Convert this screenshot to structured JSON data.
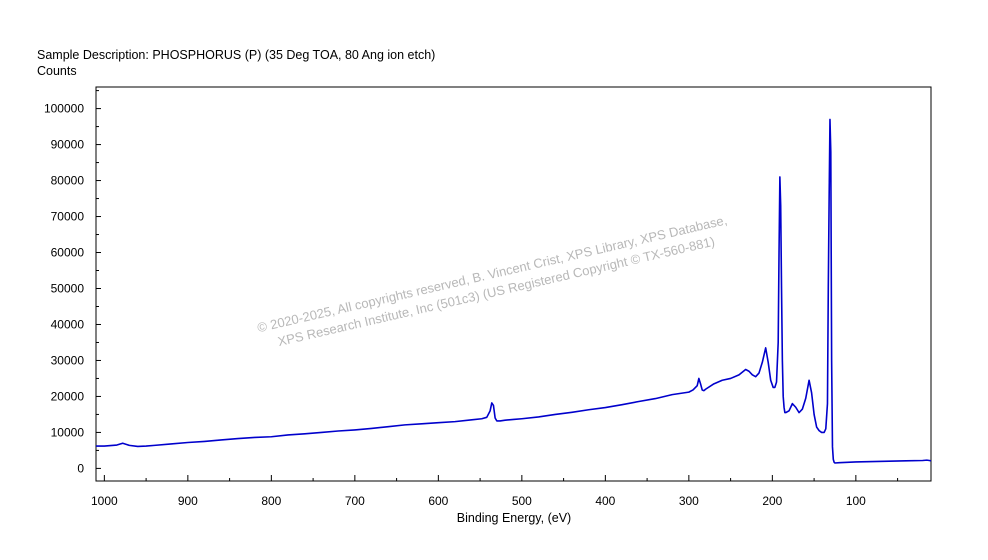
{
  "chart_data": {
    "type": "line",
    "title": "Sample Description:  PHOSPHORUS (P) (35 Deg TOA, 80 Ang ion etch)",
    "ylabel": "Counts",
    "xlabel": "Binding Energy, (eV)",
    "x_reversed": true,
    "xlim": [
      1010,
      10
    ],
    "ylim": [
      -3500,
      106000
    ],
    "x_ticks": [
      1000,
      900,
      800,
      700,
      600,
      500,
      400,
      300,
      200,
      100
    ],
    "y_ticks": [
      0,
      10000,
      20000,
      30000,
      40000,
      50000,
      60000,
      70000,
      80000,
      90000,
      100000
    ],
    "grid": false,
    "line_color": "#0000cc",
    "watermark": [
      "©  2020-2025,  All copyrights reserved,   B. Vincent Crist,  XPS Library, XPS Database,",
      "XPS Research Institute, Inc (501c3)   (US Registered Copyright © TX-560-881)"
    ],
    "series": [
      {
        "x": [
          1010,
          1000,
          985,
          978,
          970,
          960,
          950,
          940,
          920,
          900,
          880,
          860,
          840,
          820,
          800,
          780,
          760,
          740,
          720,
          700,
          680,
          660,
          640,
          620,
          600,
          580,
          560,
          548,
          542,
          538,
          536,
          534,
          532,
          530,
          526,
          520,
          510,
          500,
          480,
          460,
          440,
          420,
          400,
          380,
          360,
          340,
          320,
          300,
          295,
          290,
          288,
          286,
          284,
          282,
          280,
          270,
          260,
          250,
          240,
          232,
          228,
          224,
          220,
          216,
          212,
          208,
          205,
          202,
          199,
          197,
          195,
          193,
          192,
          191,
          190,
          189,
          188,
          187,
          186,
          185,
          184,
          180,
          176,
          172,
          168,
          164,
          160,
          156,
          153,
          150,
          147,
          144,
          141,
          138,
          136,
          134,
          133,
          132,
          131,
          130,
          129,
          128,
          127,
          126,
          125,
          120,
          110,
          100,
          80,
          60,
          40,
          20,
          15,
          12,
          10
        ],
        "y": [
          6200,
          6200,
          6500,
          7000,
          6400,
          6100,
          6200,
          6400,
          6800,
          7200,
          7500,
          7900,
          8300,
          8600,
          8800,
          9300,
          9600,
          10000,
          10400,
          10700,
          11100,
          11600,
          12100,
          12400,
          12700,
          13000,
          13500,
          13800,
          14200,
          16000,
          18200,
          17500,
          14000,
          13200,
          13200,
          13400,
          13600,
          13800,
          14300,
          15000,
          15600,
          16300,
          16900,
          17700,
          18600,
          19400,
          20500,
          21200,
          21800,
          23000,
          25000,
          23500,
          21800,
          21600,
          22000,
          23500,
          24500,
          25000,
          26000,
          27500,
          27000,
          26000,
          25500,
          26500,
          29500,
          33500,
          29500,
          24500,
          22500,
          22500,
          24000,
          35000,
          60000,
          81000,
          73000,
          50000,
          30000,
          20000,
          17000,
          15500,
          15500,
          16000,
          18000,
          17000,
          15500,
          16500,
          19500,
          24500,
          21000,
          15000,
          11500,
          10500,
          10000,
          10000,
          11000,
          18000,
          50000,
          75000,
          97000,
          88000,
          30000,
          6000,
          2500,
          1700,
          1500,
          1600,
          1700,
          1800,
          1900,
          2000,
          2100,
          2200,
          2300,
          2200,
          2100
        ]
      }
    ]
  }
}
